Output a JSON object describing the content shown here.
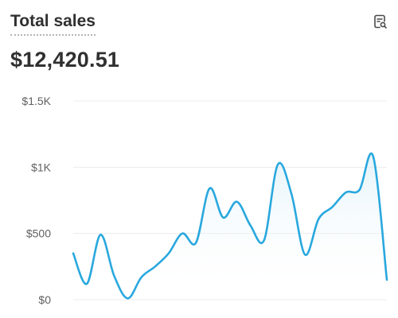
{
  "card": {
    "title": "Total sales",
    "amount": "$12,420.51"
  },
  "icons": {
    "report": "search-report-icon"
  },
  "colors": {
    "line": "#29a8de",
    "area_top": "#cfeaf6",
    "grid": "#ececec"
  },
  "chart_data": {
    "type": "area",
    "y_tick_labels": [
      "$0",
      "$500",
      "$1K",
      "$1.5K"
    ],
    "y_tick_values": [
      0,
      500,
      1000,
      1500
    ],
    "ylim": [
      0,
      1500
    ],
    "grid": true,
    "values": [
      350,
      120,
      490,
      180,
      10,
      170,
      250,
      350,
      500,
      430,
      840,
      620,
      740,
      560,
      450,
      1020,
      800,
      340,
      610,
      700,
      810,
      830,
      1080,
      150
    ]
  }
}
